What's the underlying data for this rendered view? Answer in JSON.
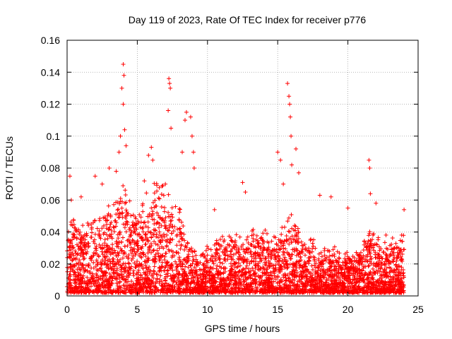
{
  "chart_data": {
    "type": "scatter",
    "title": "Day 119 of 2023, Rate Of TEC Index for receiver p776",
    "xlabel": "GPS time / hours",
    "ylabel": "ROTI / TECUs",
    "xlim": [
      0,
      25
    ],
    "ylim": [
      0,
      0.16
    ],
    "x_ticks": [
      0,
      5,
      10,
      15,
      20,
      25
    ],
    "x_tick_labels": [
      "0",
      "5",
      "10",
      "15",
      "20",
      "25"
    ],
    "y_ticks": [
      0,
      0.02,
      0.04,
      0.06,
      0.08,
      0.1,
      0.12,
      0.14,
      0.16
    ],
    "y_tick_labels": [
      "0",
      "0.02",
      "0.04",
      "0.06",
      "0.08",
      "0.1",
      "0.12",
      "0.14",
      "0.16"
    ],
    "grid": true,
    "marker": "+",
    "color": "#ff0000",
    "series": [
      {
        "name": "ROTI",
        "envelope": {
          "description": "approximate typical upper envelope of the dense point cloud vs time (hours, ROTI)",
          "x": [
            0,
            0.5,
            1,
            2,
            3,
            3.5,
            4,
            4.5,
            5,
            5.5,
            6,
            6.5,
            7,
            7.5,
            8,
            8.5,
            9,
            9.5,
            10,
            11,
            12,
            13,
            14,
            15,
            15.5,
            16,
            16.5,
            17,
            18,
            19,
            20,
            21,
            21.5,
            22,
            23,
            24
          ],
          "y": [
            0.035,
            0.04,
            0.035,
            0.04,
            0.045,
            0.05,
            0.06,
            0.05,
            0.04,
            0.05,
            0.055,
            0.06,
            0.055,
            0.05,
            0.045,
            0.03,
            0.025,
            0.02,
            0.025,
            0.03,
            0.03,
            0.035,
            0.035,
            0.03,
            0.04,
            0.045,
            0.035,
            0.03,
            0.025,
            0.025,
            0.02,
            0.025,
            0.035,
            0.03,
            0.03,
            0.03
          ]
        },
        "outliers": {
          "x": [
            0.2,
            0.3,
            1.0,
            2.0,
            2.5,
            3.0,
            3.5,
            3.7,
            3.8,
            3.9,
            4.0,
            4.0,
            4.05,
            4.1,
            4.2,
            5.5,
            5.8,
            6.0,
            6.1,
            7.0,
            7.2,
            7.25,
            7.3,
            7.35,
            7.4,
            8.2,
            8.4,
            8.5,
            8.8,
            8.9,
            9.0,
            9.05,
            10.5,
            12.5,
            12.7,
            15.0,
            15.2,
            15.4,
            15.7,
            15.8,
            15.85,
            15.9,
            15.95,
            16.0,
            16.3,
            16.5,
            18.0,
            18.8,
            20.0,
            21.5,
            21.55,
            21.6,
            22.0,
            24.0
          ],
          "y": [
            0.075,
            0.06,
            0.062,
            0.075,
            0.07,
            0.08,
            0.078,
            0.09,
            0.1,
            0.13,
            0.145,
            0.12,
            0.138,
            0.104,
            0.094,
            0.072,
            0.088,
            0.093,
            0.085,
            0.07,
            0.116,
            0.136,
            0.133,
            0.13,
            0.105,
            0.09,
            0.11,
            0.115,
            0.112,
            0.1,
            0.09,
            0.08,
            0.054,
            0.071,
            0.065,
            0.09,
            0.085,
            0.07,
            0.133,
            0.125,
            0.12,
            0.112,
            0.1,
            0.082,
            0.092,
            0.077,
            0.063,
            0.062,
            0.055,
            0.085,
            0.08,
            0.064,
            0.058,
            0.054
          ]
        }
      }
    ]
  }
}
